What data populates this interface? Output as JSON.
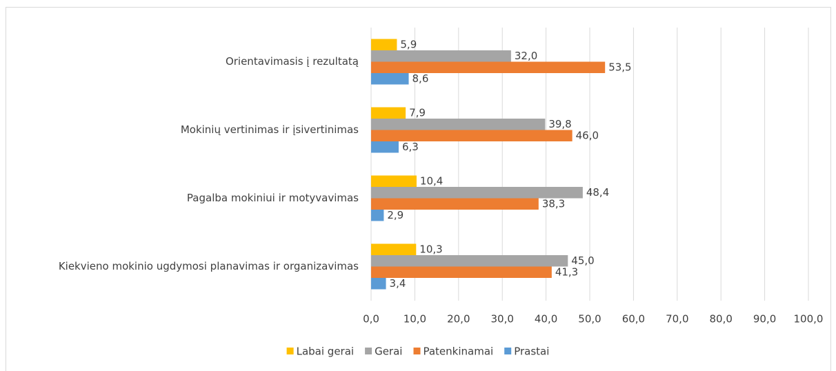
{
  "chart_data": {
    "type": "bar",
    "orientation": "horizontal",
    "categories": [
      "Orientavimasis į rezultatą",
      "Mokinių vertinimas ir įsivertinimas",
      "Pagalba mokiniui ir motyvavimas",
      "Kiekvieno mokinio ugdymosi planavimas ir organizavimas"
    ],
    "series": [
      {
        "name": "Labai gerai",
        "color": "#ffc000",
        "values": [
          5.9,
          7.9,
          10.4,
          10.3
        ],
        "value_labels": [
          "5,9",
          "7,9",
          "10,4",
          "10,3"
        ]
      },
      {
        "name": "Gerai",
        "color": "#a5a5a5",
        "values": [
          32.0,
          39.8,
          48.4,
          45.0
        ],
        "value_labels": [
          "32,0",
          "39,8",
          "48,4",
          "45,0"
        ]
      },
      {
        "name": "Patenkinamai",
        "color": "#ed7d31",
        "values": [
          53.5,
          46.0,
          38.3,
          41.3
        ],
        "value_labels": [
          "53,5",
          "46,0",
          "38,3",
          "41,3"
        ]
      },
      {
        "name": "Prastai",
        "color": "#5b9bd5",
        "values": [
          8.6,
          6.3,
          2.9,
          3.4
        ],
        "value_labels": [
          "8,6",
          "6,3",
          "2,9",
          "3,4"
        ]
      }
    ],
    "xlim": [
      0,
      100
    ],
    "xticks": [
      {
        "value": 0,
        "label": "0,0"
      },
      {
        "value": 10,
        "label": "10,0"
      },
      {
        "value": 20,
        "label": "20,0"
      },
      {
        "value": 30,
        "label": "30,0"
      },
      {
        "value": 40,
        "label": "40,0"
      },
      {
        "value": 50,
        "label": "50,0"
      },
      {
        "value": 60,
        "label": "60,0"
      },
      {
        "value": 70,
        "label": "70,0"
      },
      {
        "value": 80,
        "label": "80,0"
      },
      {
        "value": 90,
        "label": "90,0"
      },
      {
        "value": 100,
        "label": "100,0"
      }
    ],
    "grid": true,
    "legend": "bottom"
  }
}
